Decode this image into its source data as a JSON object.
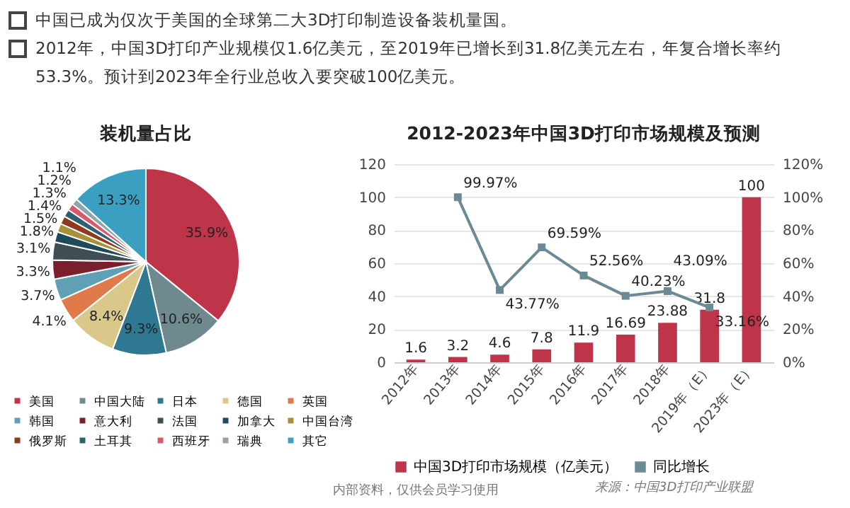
{
  "chart_data": [
    {
      "type": "pie",
      "title": "装机量占比",
      "categories": [
        "美国",
        "中国大陆",
        "日本",
        "德国",
        "英国",
        "韩国",
        "意大利",
        "法国",
        "加拿大",
        "中国台湾",
        "俄罗斯",
        "土耳其",
        "西班牙",
        "瑞典",
        "其它"
      ],
      "values": [
        35.9,
        10.6,
        9.3,
        8.4,
        4.1,
        3.7,
        3.3,
        3.1,
        1.8,
        1.5,
        1.4,
        1.3,
        1.2,
        1.1,
        13.3
      ],
      "value_labels": [
        "35.9%",
        "10.6%",
        "9.3%",
        "8.4%",
        "4.1%",
        "3.7%",
        "3.3%",
        "3.1%",
        "1.8%",
        "1.5%",
        "1.4%",
        "1.3%",
        "1.2%",
        "1.1%",
        "13.3%"
      ],
      "colors": [
        "#be3449",
        "#6e8a8f",
        "#2e7891",
        "#d9c88a",
        "#e07a4a",
        "#5fa0b5",
        "#7a1f2e",
        "#3f4d55",
        "#1e4a5a",
        "#a89238",
        "#8f3a1e",
        "#2e6070",
        "#d85a6a",
        "#8fa5aa",
        "#3a9fc0"
      ],
      "legend": "bottom",
      "annotations": [
        "中国已成为仅次于美国的全球第二大3D打印制造设备装机量国。",
        "2012年，中国3D打印产业规模仅1.6亿美元，至2019年已增长到31.8亿美元左右，年复合增长率约53.3%。预计到2023年全行业总收入要突破100亿美元。"
      ]
    },
    {
      "type": "bar",
      "title": "2012-2023年中国3D打印市场规模及预测",
      "categories": [
        "2012年",
        "2013年",
        "2014年",
        "2015年",
        "2016年",
        "2017年",
        "2018年",
        "2019年（E）",
        "2023年（E）"
      ],
      "series": [
        {
          "name": "中国3D打印市场规模（亿美元）",
          "type": "bar",
          "color": "#be3449",
          "values": [
            1.6,
            3.2,
            4.6,
            7.8,
            11.9,
            16.69,
            23.88,
            31.8,
            100
          ],
          "value_labels": [
            "1.6",
            "3.2",
            "4.6",
            "7.8",
            "11.9",
            "16.69",
            "23.88",
            "31.8",
            "100"
          ]
        },
        {
          "name": "同比增长",
          "type": "line",
          "axis": "y2",
          "color": "#6b8a94",
          "values": [
            null,
            99.97,
            43.77,
            69.59,
            52.56,
            40.23,
            43.09,
            33.16,
            null
          ],
          "value_labels": [
            null,
            "99.97%",
            "43.77%",
            "69.59%",
            "52.56%",
            "40.23%",
            "43.09%",
            "33.16%",
            null
          ]
        }
      ],
      "ylim": [
        0,
        120
      ],
      "yticks": [
        0,
        20,
        40,
        60,
        80,
        100,
        120
      ],
      "y2lim": [
        0,
        120
      ],
      "y2ticks": [
        {
          "value": 0,
          "label": "0%"
        },
        {
          "value": 20,
          "label": "20%"
        },
        {
          "value": 40,
          "label": "40%"
        },
        {
          "value": 60,
          "label": "60%"
        },
        {
          "value": 80,
          "label": "80%"
        },
        {
          "value": 100,
          "label": "100%"
        },
        {
          "value": 120,
          "label": "120%"
        }
      ],
      "grid": "y",
      "legend": "bottom",
      "marker": "square",
      "line_style": "solid",
      "annotations": [
        "内部资料，仅供会员学习使用",
        "来源：中国3D打印产业联盟"
      ]
    }
  ]
}
